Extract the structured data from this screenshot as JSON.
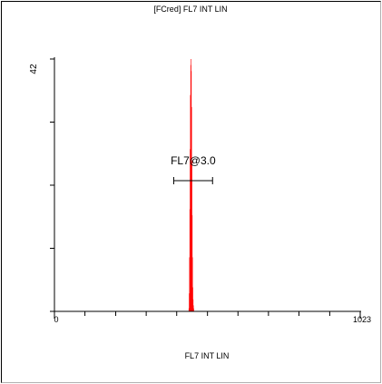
{
  "chart_data": {
    "type": "histogram",
    "title": "[FCred] FL7 INT LIN",
    "xlabel": "FL7 INT LIN",
    "ylabel": "",
    "xlim": [
      0,
      1023
    ],
    "ylim": [
      0,
      42
    ],
    "x_tick_labels": [
      {
        "value": 0,
        "label": "0"
      },
      {
        "value": 1023,
        "label": "1023"
      }
    ],
    "y_tick_labels": [
      {
        "value": 42,
        "label": "42"
      }
    ],
    "x_ticks": [
      0,
      102,
      205,
      307,
      409,
      512,
      614,
      716,
      818,
      921,
      1023
    ],
    "y_ticks": [
      0,
      10.5,
      21,
      31.5,
      42
    ],
    "bars": [
      {
        "x": 449,
        "count": 0.5
      },
      {
        "x": 450,
        "count": 3
      },
      {
        "x": 451,
        "count": 9
      },
      {
        "x": 452,
        "count": 17
      },
      {
        "x": 453,
        "count": 27
      },
      {
        "x": 454,
        "count": 36
      },
      {
        "x": 455,
        "count": 41
      },
      {
        "x": 456,
        "count": 42
      },
      {
        "x": 457,
        "count": 40
      },
      {
        "x": 458,
        "count": 34
      },
      {
        "x": 459,
        "count": 25
      },
      {
        "x": 460,
        "count": 16
      },
      {
        "x": 461,
        "count": 9
      },
      {
        "x": 462,
        "count": 4
      },
      {
        "x": 463,
        "count": 2
      },
      {
        "x": 464,
        "count": 1
      },
      {
        "x": 465,
        "count": 0.5
      }
    ],
    "bar_color": "#ff0000",
    "gate": {
      "label": "FL7@3.0",
      "x_start": 399,
      "x_end": 529,
      "y": 21
    }
  }
}
